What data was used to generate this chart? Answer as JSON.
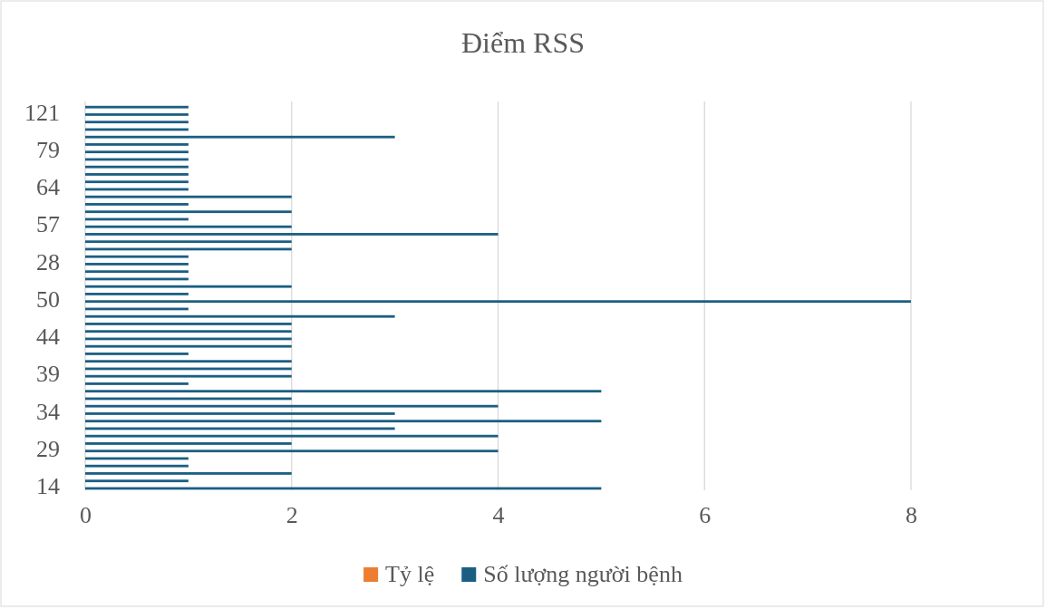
{
  "chart_data": {
    "type": "bar",
    "orientation": "horizontal",
    "title": "Điểm RSS",
    "categories": [
      null,
      "121",
      null,
      null,
      null,
      null,
      "79",
      null,
      null,
      null,
      null,
      "64",
      null,
      null,
      null,
      null,
      "57",
      null,
      null,
      null,
      null,
      "28",
      null,
      null,
      null,
      null,
      "50",
      null,
      null,
      null,
      null,
      "44",
      null,
      null,
      null,
      null,
      "39",
      null,
      null,
      null,
      null,
      "34",
      null,
      null,
      null,
      null,
      "29",
      null,
      null,
      null,
      null,
      "14"
    ],
    "series": [
      {
        "name": "Tỷ lệ",
        "color": "#ed7d31",
        "values": [
          null,
          null,
          null,
          null,
          null,
          null,
          null,
          null,
          null,
          null,
          null,
          null,
          null,
          null,
          null,
          null,
          null,
          null,
          null,
          null,
          null,
          null,
          null,
          null,
          null,
          null,
          null,
          null,
          null,
          null,
          null,
          null,
          null,
          null,
          null,
          null,
          null,
          null,
          null,
          null,
          null,
          null,
          null,
          null,
          null,
          null,
          null,
          null,
          null,
          null,
          null,
          null
        ]
      },
      {
        "name": "Số lượng người bệnh",
        "color": "#1b5e82",
        "values": [
          1,
          1,
          1,
          1,
          3,
          1,
          1,
          1,
          1,
          1,
          1,
          1,
          2,
          1,
          2,
          1,
          2,
          4,
          2,
          2,
          1,
          1,
          1,
          1,
          2,
          1,
          8,
          1,
          3,
          2,
          2,
          2,
          2,
          1,
          2,
          2,
          2,
          1,
          5,
          2,
          4,
          3,
          5,
          3,
          4,
          2,
          4,
          1,
          1,
          2,
          1,
          5
        ]
      }
    ],
    "xlim": [
      0,
      8
    ],
    "xticks": [
      0,
      2,
      4,
      6,
      8
    ],
    "grid": "x",
    "legend": "bottom"
  }
}
